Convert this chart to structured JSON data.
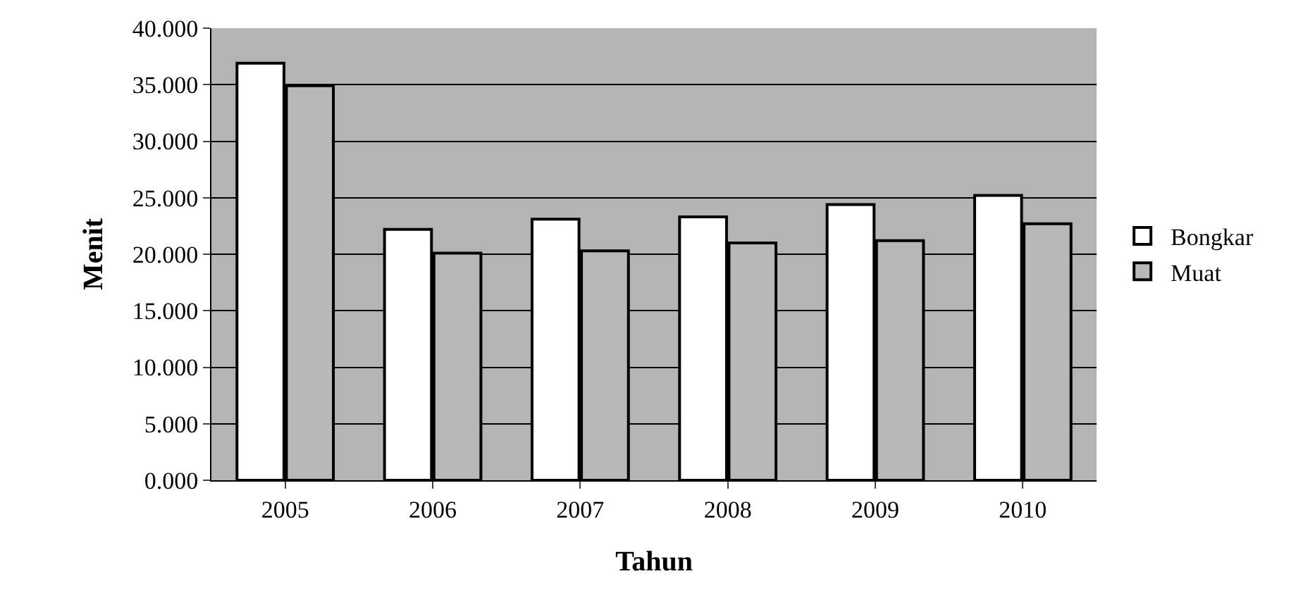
{
  "chart_data": {
    "type": "bar",
    "xlabel": "Tahun",
    "ylabel": "Menit",
    "categories": [
      "2005",
      "2006",
      "2007",
      "2008",
      "2009",
      "2010"
    ],
    "series": [
      {
        "name": "Bongkar",
        "color": "#ffffff",
        "values": [
          36.9,
          22.2,
          23.1,
          23.3,
          24.4,
          25.2
        ]
      },
      {
        "name": "Muat",
        "color": "#b8b8b8",
        "values": [
          34.9,
          20.1,
          20.3,
          21.0,
          21.2,
          22.7
        ]
      }
    ],
    "ylim": [
      0,
      40
    ],
    "yticks": [
      {
        "value": 0,
        "label": "0.000"
      },
      {
        "value": 5,
        "label": "5.000"
      },
      {
        "value": 10,
        "label": "10.000"
      },
      {
        "value": 15,
        "label": "15.000"
      },
      {
        "value": 20,
        "label": "20.000"
      },
      {
        "value": 25,
        "label": "25.000"
      },
      {
        "value": 30,
        "label": "30.000"
      },
      {
        "value": 35,
        "label": "35.000"
      },
      {
        "value": 40,
        "label": "40.000"
      }
    ],
    "grid": "y",
    "legend": "right"
  }
}
